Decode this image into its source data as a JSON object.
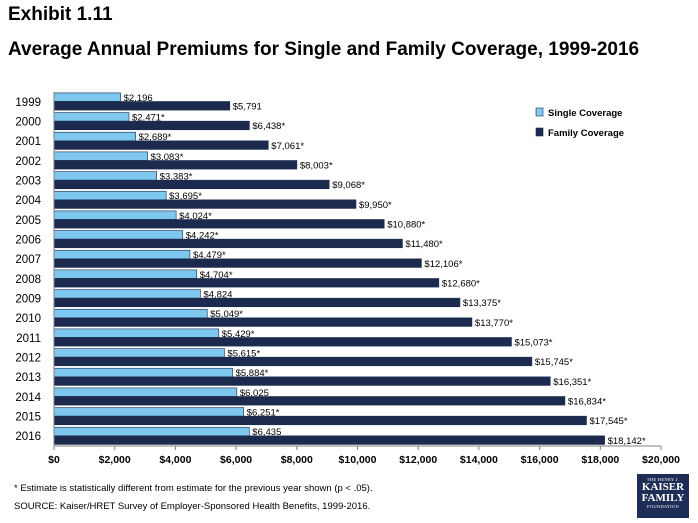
{
  "header": {
    "exhibit": "Exhibit 1.11",
    "title": "Average Annual Premiums for Single and Family Coverage, 1999-2016"
  },
  "chart_data": {
    "type": "bar",
    "orientation": "horizontal",
    "categories": [
      "1999",
      "2000",
      "2001",
      "2002",
      "2003",
      "2004",
      "2005",
      "2006",
      "2007",
      "2008",
      "2009",
      "2010",
      "2011",
      "2012",
      "2013",
      "2014",
      "2015",
      "2016"
    ],
    "series": [
      {
        "name": "Single Coverage",
        "color": "#7ec8ef",
        "values": [
          2196,
          2471,
          2689,
          3083,
          3383,
          3695,
          4024,
          4242,
          4479,
          4704,
          4824,
          5049,
          5429,
          5615,
          5884,
          6025,
          6251,
          6435
        ],
        "labels": [
          "$2,196",
          "$2,471*",
          "$2,689*",
          "$3,083*",
          "$3,383*",
          "$3,695*",
          "$4,024*",
          "$4,242*",
          "$4,479*",
          "$4,704*",
          "$4,824",
          "$5,049*",
          "$5,429*",
          "$5,615*",
          "$5,884*",
          "$6,025",
          "$6,251*",
          "$6,435"
        ]
      },
      {
        "name": "Family Coverage",
        "color": "#1b2a4e",
        "values": [
          5791,
          6438,
          7061,
          8003,
          9068,
          9950,
          10880,
          11480,
          12106,
          12680,
          13375,
          13770,
          15073,
          15745,
          16351,
          16834,
          17545,
          18142
        ],
        "labels": [
          "$5,791",
          "$6,438*",
          "$7,061*",
          "$8,003*",
          "$9,068*",
          "$9,950*",
          "$10,880*",
          "$11,480*",
          "$12,106*",
          "$12,680*",
          "$13,375*",
          "$13,770*",
          "$15,073*",
          "$15,745*",
          "$16,351*",
          "$16,834*",
          "$17,545*",
          "$18,142*"
        ]
      }
    ],
    "xlim": [
      0,
      20000
    ],
    "x_ticks": [
      0,
      2000,
      4000,
      6000,
      8000,
      10000,
      12000,
      14000,
      16000,
      18000,
      20000
    ],
    "x_tick_labels": [
      "$0",
      "$2,000",
      "$4,000",
      "$6,000",
      "$8,000",
      "$10,000",
      "$12,000",
      "$14,000",
      "$16,000",
      "$18,000",
      "$20,000"
    ],
    "grid": false,
    "legend": "top-right"
  },
  "footnote": "* Estimate is statistically different from estimate for the previous year shown (p < .05).",
  "source": "SOURCE:  Kaiser/HRET Survey of Employer-Sponsored Health Benefits, 1999-2016.",
  "logo": {
    "line1": "THE HENRY J.",
    "line2": "KAISER",
    "line3": "FAMILY",
    "line4": "FOUNDATION"
  }
}
